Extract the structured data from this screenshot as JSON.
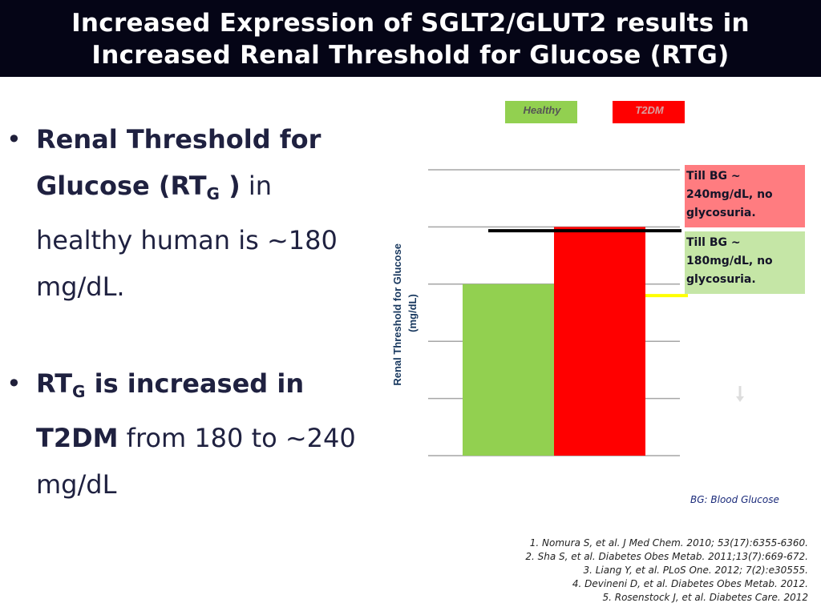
{
  "title": {
    "line1": "Increased Expression of SGLT2/GLUT2 results in",
    "line2": "Increased Renal Threshold for Glucose (RTG)"
  },
  "bullets": [
    {
      "marker": "•",
      "line1_bold": "Renal Threshold for",
      "line2_bold_pre": "Glucose (RT",
      "line2_sub": "G",
      "line2_bold_post": " )",
      "line2_normal": " in",
      "line3": "healthy human is ~180",
      "line4": "mg/dL."
    },
    {
      "marker": "•",
      "line1_bold_pre": "RT",
      "line1_sub": "G",
      "line1_bold_post": " is increased in",
      "line2_bold": "T2DM",
      "line2_normal": " from 180 to ~240",
      "line3": "mg/dL"
    }
  ],
  "chart_data": {
    "type": "bar",
    "title": "",
    "ylabel": "Renal Threshold for Glucose (mg/dL)",
    "xlabel": "",
    "categories": [
      "Healthy",
      "T2DM"
    ],
    "values": [
      180,
      240
    ],
    "ylim": [
      0,
      300
    ],
    "gridlines": [
      0,
      60,
      120,
      180,
      240,
      300
    ],
    "legend": [
      {
        "name": "Healthy",
        "color": "#92d050"
      },
      {
        "name": "T2DM",
        "color": "#ff0000"
      }
    ],
    "reference_lines": [
      {
        "value": 236,
        "color": "#000000"
      },
      {
        "value": 168,
        "color": "#ffff00"
      }
    ],
    "bar_colors": [
      "#92d050",
      "#ff0000"
    ]
  },
  "callouts": {
    "t2dm": {
      "line1": "Till BG ~",
      "line2": "240mg/dL, no",
      "line3": "glycosuria.",
      "bg": "#ff7c80"
    },
    "healthy": {
      "line1": "Till BG ~",
      "line2": "180mg/dL, no",
      "line3": "glycosuria.",
      "bg": "#c5e6a6"
    }
  },
  "note": "BG: Blood Glucose",
  "citations": [
    "1. Nomura S, et al. J Med Chem. 2010; 53(17):6355-6360.",
    "2. Sha S, et al. Diabetes Obes Metab. 2011;13(7):669-672.",
    "3. Liang Y, et al. PLoS One. 2012; 7(2):e30555.",
    "4. Devineni D, et al. Diabetes Obes Metab. 2012.",
    "5. Rosenstock J, et al. Diabetes Care. 2012"
  ],
  "colors": {
    "title_bg": "#050516",
    "title_fg": "#ffffff",
    "text": "#1f2140"
  }
}
